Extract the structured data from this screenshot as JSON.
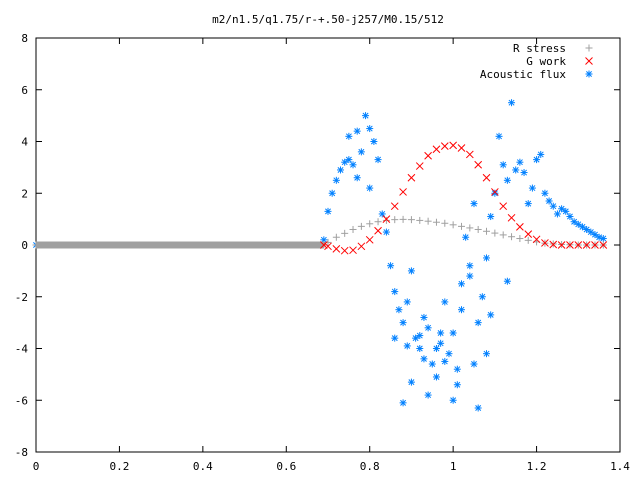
{
  "chart_data": {
    "type": "scatter",
    "title": "m2/n1.5/q1.75/r-+.50-j257/M0.15/512",
    "xlabel": "",
    "ylabel": "",
    "xlim": [
      0,
      1.4
    ],
    "ylim": [
      -8,
      8
    ],
    "xticks": [
      0,
      0.2,
      0.4,
      0.6,
      0.8,
      1,
      1.2,
      1.4
    ],
    "xtick_labels": [
      "0",
      "0.2",
      "0.4",
      "0.6",
      "0.8",
      "1",
      "1.2",
      "1.4"
    ],
    "yticks": [
      -8,
      -6,
      -4,
      -2,
      0,
      2,
      4,
      6,
      8
    ],
    "ytick_labels": [
      "-8",
      "-6",
      "-4",
      "-2",
      "0",
      "2",
      "4",
      "6",
      "8"
    ],
    "grid": false,
    "legend_position": "top-right",
    "series": [
      {
        "name": "R stress",
        "marker": "plus",
        "color": "#a0a0a0",
        "x": [
          0.0,
          0.05,
          0.1,
          0.15,
          0.2,
          0.25,
          0.3,
          0.35,
          0.4,
          0.45,
          0.5,
          0.55,
          0.6,
          0.65,
          0.69,
          0.7,
          0.72,
          0.74,
          0.76,
          0.78,
          0.8,
          0.82,
          0.84,
          0.86,
          0.88,
          0.9,
          0.92,
          0.94,
          0.96,
          0.98,
          1.0,
          1.02,
          1.04,
          1.06,
          1.08,
          1.1,
          1.12,
          1.14,
          1.16,
          1.18,
          1.2,
          1.22,
          1.24,
          1.26,
          1.28,
          1.3,
          1.32,
          1.34,
          1.36
        ],
        "y": [
          0,
          0,
          0,
          0,
          0,
          0,
          0,
          0,
          0,
          0,
          0,
          0,
          0,
          0,
          0,
          0.1,
          0.3,
          0.45,
          0.6,
          0.72,
          0.82,
          0.9,
          0.95,
          0.98,
          0.99,
          0.98,
          0.95,
          0.92,
          0.88,
          0.84,
          0.78,
          0.72,
          0.66,
          0.6,
          0.53,
          0.46,
          0.39,
          0.32,
          0.25,
          0.18,
          0.12,
          0.07,
          0.04,
          0.02,
          0.01,
          0,
          0,
          0,
          0
        ]
      },
      {
        "name": "G work",
        "marker": "cross",
        "color": "#ff0000",
        "x": [
          0.69,
          0.7,
          0.72,
          0.74,
          0.76,
          0.78,
          0.8,
          0.82,
          0.84,
          0.86,
          0.88,
          0.9,
          0.92,
          0.94,
          0.96,
          0.98,
          1.0,
          1.02,
          1.04,
          1.06,
          1.08,
          1.1,
          1.12,
          1.14,
          1.16,
          1.18,
          1.2,
          1.22,
          1.24,
          1.26,
          1.28,
          1.3,
          1.32,
          1.34,
          1.36
        ],
        "y": [
          0,
          -0.05,
          -0.15,
          -0.22,
          -0.2,
          -0.05,
          0.2,
          0.55,
          1.0,
          1.5,
          2.05,
          2.6,
          3.05,
          3.45,
          3.7,
          3.82,
          3.85,
          3.75,
          3.5,
          3.1,
          2.6,
          2.05,
          1.5,
          1.05,
          0.7,
          0.42,
          0.22,
          0.08,
          0.02,
          0,
          0,
          0,
          0,
          0,
          0
        ]
      },
      {
        "name": "Acoustic flux",
        "marker": "star",
        "color": "#0080ff",
        "x": [
          0.0,
          0.02,
          0.04,
          0.06,
          0.08,
          0.1,
          0.12,
          0.14,
          0.16,
          0.18,
          0.2,
          0.22,
          0.24,
          0.26,
          0.28,
          0.3,
          0.32,
          0.34,
          0.36,
          0.38,
          0.4,
          0.42,
          0.44,
          0.46,
          0.48,
          0.5,
          0.52,
          0.54,
          0.56,
          0.58,
          0.6,
          0.62,
          0.64,
          0.66,
          0.68,
          0.69,
          0.7,
          0.71,
          0.72,
          0.73,
          0.74,
          0.75,
          0.76,
          0.77,
          0.75,
          0.77,
          0.78,
          0.79,
          0.8,
          0.81,
          0.8,
          0.82,
          0.83,
          0.84,
          0.85,
          0.86,
          0.87,
          0.88,
          0.89,
          0.9,
          0.91,
          0.92,
          0.93,
          0.94,
          0.95,
          0.96,
          0.97,
          0.98,
          0.99,
          1.0,
          1.01,
          1.02,
          1.03,
          1.04,
          1.05,
          1.06,
          1.07,
          1.08,
          1.09,
          1.1,
          1.11,
          1.12,
          1.13,
          1.14,
          1.15,
          1.16,
          1.17,
          1.18,
          1.19,
          1.2,
          1.21,
          1.22,
          1.23,
          1.24,
          1.25,
          1.26,
          1.27,
          1.28,
          1.29,
          1.3,
          1.31,
          1.32,
          1.33,
          1.34,
          1.35,
          1.36,
          0.86,
          0.88,
          0.9,
          0.92,
          0.94,
          0.96,
          0.98,
          1.0,
          1.02,
          1.04,
          1.06,
          1.08,
          0.89,
          0.93,
          0.97,
          1.01,
          1.05,
          1.09,
          1.13
        ],
        "y": [
          0,
          0,
          0,
          0,
          0,
          0,
          0,
          0,
          0,
          0,
          0,
          0,
          0,
          0,
          0,
          0,
          0,
          0,
          0,
          0,
          0,
          0,
          0,
          0,
          0,
          0,
          0,
          0,
          0,
          0,
          0,
          0,
          0,
          0,
          0,
          0.2,
          1.3,
          2.0,
          2.5,
          2.9,
          3.2,
          3.3,
          3.1,
          2.6,
          4.2,
          4.4,
          3.6,
          5.0,
          4.5,
          4.0,
          2.2,
          3.3,
          1.2,
          0.5,
          -0.8,
          -1.8,
          -2.5,
          -3.0,
          -2.2,
          -1.0,
          -3.6,
          -4.0,
          -2.8,
          -3.2,
          -4.6,
          -5.1,
          -3.8,
          -2.2,
          -4.2,
          -3.4,
          -4.8,
          -1.5,
          0.3,
          -1.2,
          1.6,
          -3.0,
          -2.0,
          -0.5,
          1.1,
          2.0,
          4.2,
          3.1,
          2.5,
          5.5,
          2.9,
          3.2,
          2.8,
          1.6,
          2.2,
          3.3,
          3.5,
          2.0,
          1.7,
          1.5,
          1.2,
          1.4,
          1.3,
          1.1,
          0.9,
          0.8,
          0.7,
          0.6,
          0.5,
          0.4,
          0.3,
          0.25,
          -3.6,
          -6.1,
          -5.3,
          -3.5,
          -5.8,
          -4.0,
          -4.5,
          -6.0,
          -2.5,
          -0.8,
          -6.3,
          -4.2,
          -3.9,
          -4.4,
          -3.4,
          -5.4,
          -4.6,
          -2.7,
          -1.4
        ]
      }
    ]
  }
}
